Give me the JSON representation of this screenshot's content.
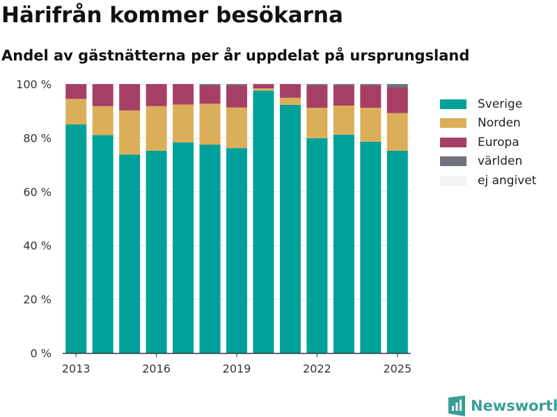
{
  "title": "Härifrån kommer besökarna",
  "subtitle": "Andel av gästnätterna per år uppdelat på ursprungsland",
  "brand": "Newsworthy",
  "colors": {
    "Sverige": "#00a19a",
    "Norden": "#dbaf5a",
    "Europa": "#a63f66",
    "världen": "#6f7278",
    "ej angivet": "#f2f2f2",
    "grid": "#e1e1e1",
    "axis": "#333333",
    "brand": "#3a9d98"
  },
  "chart_data": {
    "type": "bar",
    "stacked": true,
    "x": [
      2013,
      2014,
      2015,
      2016,
      2017,
      2018,
      2019,
      2020,
      2021,
      2022,
      2023,
      2024,
      2025
    ],
    "x_tick_labels": [
      "2013",
      "2016",
      "2019",
      "2022",
      "2025"
    ],
    "x_ticks": [
      2013,
      2016,
      2019,
      2022,
      2025
    ],
    "y_tick_labels": [
      "0 %",
      "20 %",
      "40 %",
      "60 %",
      "80 %",
      "100 %"
    ],
    "y_ticks": [
      0,
      20,
      40,
      60,
      80,
      100
    ],
    "ylim": [
      0,
      100
    ],
    "grid": true,
    "legend": "right",
    "series": [
      {
        "name": "Sverige",
        "values": [
          85.0,
          81.0,
          73.8,
          75.2,
          78.3,
          77.5,
          76.2,
          97.6,
          92.3,
          79.9,
          81.2,
          78.6,
          75.2
        ]
      },
      {
        "name": "Norden",
        "values": [
          9.5,
          10.8,
          16.4,
          16.6,
          14.1,
          15.2,
          15.1,
          0.8,
          2.6,
          11.3,
          10.8,
          12.6,
          14.0
        ]
      },
      {
        "name": "Europa",
        "values": [
          5.5,
          8.2,
          9.8,
          8.2,
          7.6,
          6.8,
          8.2,
          1.6,
          5.1,
          8.3,
          7.5,
          8.3,
          9.5
        ]
      },
      {
        "name": "världen",
        "values": [
          0.0,
          0.0,
          0.0,
          0.0,
          0.0,
          0.5,
          0.5,
          0.0,
          0.0,
          0.5,
          0.5,
          0.5,
          1.3
        ]
      },
      {
        "name": "ej angivet",
        "values": [
          0.0,
          0.0,
          0.0,
          0.0,
          0.0,
          0.0,
          0.0,
          0.0,
          0.0,
          0.0,
          0.0,
          0.0,
          0.0
        ]
      }
    ]
  }
}
